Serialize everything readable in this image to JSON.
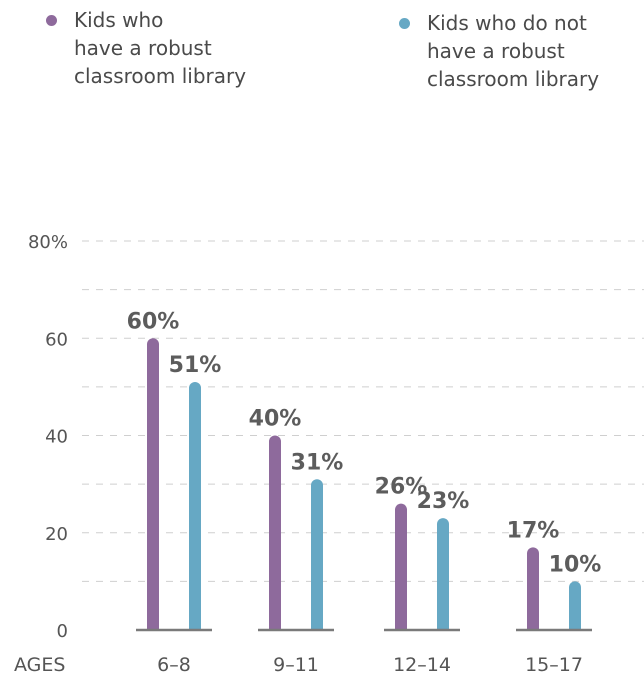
{
  "chart_data": {
    "type": "bar",
    "xlabel": "AGES",
    "ylabel": "",
    "categories": [
      "6–8",
      "9–11",
      "12–14",
      "15–17"
    ],
    "series": [
      {
        "name": "Kids who have a robust classroom library",
        "legend_label": "Kids who\nhave a robust\nclassroom library",
        "values": [
          60,
          40,
          26,
          17
        ],
        "labels": [
          "60%",
          "40%",
          "26%",
          "17%"
        ],
        "color": "#8e6a9c"
      },
      {
        "name": "Kids who do not have a robust classroom library",
        "legend_label": "Kids who do not\nhave a robust\nclassroom library",
        "values": [
          51,
          31,
          23,
          10
        ],
        "labels": [
          "51%",
          "31%",
          "23%",
          "10%"
        ],
        "color": "#66a8c4"
      }
    ],
    "ylim": [
      0,
      80
    ],
    "yticks": [
      0,
      20,
      40,
      60,
      80
    ],
    "ytick_labels": [
      "0",
      "20",
      "40",
      "60",
      "80%"
    ],
    "grid": true,
    "legend_position": "top"
  }
}
